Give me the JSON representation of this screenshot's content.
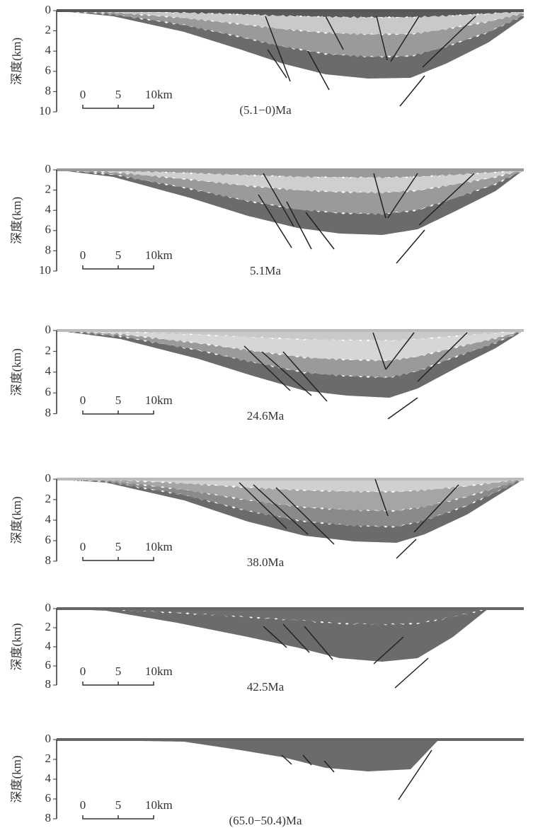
{
  "panels": [
    {
      "y_label": "深度(km)",
      "yticks": [
        0,
        2,
        4,
        6,
        8,
        10
      ],
      "scale_labels": [
        "0",
        "5",
        "10km"
      ],
      "label": "(5.1−0)Ma"
    },
    {
      "y_label": "深度(km)",
      "yticks": [
        0,
        2,
        4,
        6,
        8,
        10
      ],
      "scale_labels": [
        "0",
        "5",
        "10km"
      ],
      "label": "5.1Ma"
    },
    {
      "y_label": "深度(km)",
      "yticks": [
        0,
        2,
        4,
        6,
        8
      ],
      "scale_labels": [
        "0",
        "5",
        "10km"
      ],
      "label": "24.6Ma"
    },
    {
      "y_label": "深度(km)",
      "yticks": [
        0,
        2,
        4,
        6,
        8
      ],
      "scale_labels": [
        "0",
        "5",
        "10km"
      ],
      "label": "38.0Ma"
    },
    {
      "y_label": "深度(km)",
      "yticks": [
        0,
        2,
        4,
        6,
        8
      ],
      "scale_labels": [
        "0",
        "5",
        "10km"
      ],
      "label": "42.5Ma"
    },
    {
      "y_label": "深度(km)",
      "yticks": [
        0,
        2,
        4,
        6,
        8
      ],
      "scale_labels": [
        "0",
        "5",
        "10km"
      ],
      "label": "(65.0−50.4)Ma"
    }
  ]
}
